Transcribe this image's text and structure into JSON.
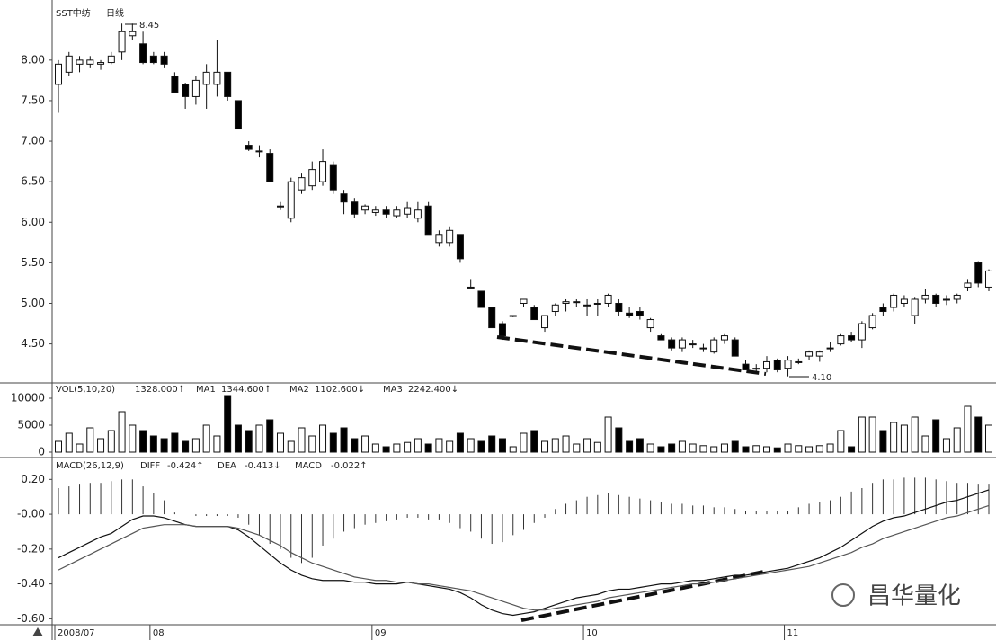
{
  "chart_data": [
    {
      "type": "candlestick",
      "title": "SST中纺",
      "subtitle": "日线",
      "annotations": [
        "8.45",
        "4.10"
      ],
      "up_color": "#ffffff",
      "down_color": "#000000",
      "open": [
        7.7,
        7.85,
        7.95,
        7.95,
        7.95,
        7.97,
        8.1,
        8.3,
        8.2,
        8.05,
        8.05,
        7.8,
        7.7,
        7.55,
        7.7,
        7.7,
        7.85,
        7.5,
        6.95,
        6.88,
        6.85,
        6.2,
        6.05,
        6.4,
        6.45,
        6.5,
        6.7,
        6.35,
        6.25,
        6.15,
        6.12,
        6.15,
        6.08,
        6.1,
        6.05,
        6.2,
        5.75,
        5.75,
        5.85,
        5.2,
        5.15,
        4.95,
        4.75,
        4.85,
        5.0,
        4.95,
        4.7,
        4.9,
        5.0,
        5.02,
        4.98,
        5.0,
        5.0,
        5.0,
        4.88,
        4.9,
        4.7,
        4.6,
        4.55,
        4.45,
        4.5,
        4.45,
        4.4,
        4.55,
        4.55,
        4.25,
        4.2,
        4.2,
        4.3,
        4.2,
        4.28,
        4.35,
        4.35,
        4.45,
        4.5,
        4.6,
        4.55,
        4.7,
        4.95,
        4.95,
        5.0,
        4.85,
        5.05,
        5.1,
        5.05,
        5.05,
        5.2,
        5.5,
        5.2
      ],
      "high": [
        8.0,
        8.1,
        8.05,
        8.05,
        8.0,
        8.1,
        8.45,
        8.45,
        8.35,
        8.1,
        8.1,
        7.85,
        7.72,
        7.8,
        7.95,
        8.25,
        7.85,
        7.5,
        7.0,
        6.95,
        6.9,
        6.25,
        6.55,
        6.6,
        6.75,
        6.9,
        6.75,
        6.4,
        6.3,
        6.22,
        6.2,
        6.2,
        6.2,
        6.25,
        6.25,
        6.25,
        5.9,
        5.95,
        5.85,
        5.3,
        5.15,
        4.95,
        4.78,
        4.85,
        5.05,
        4.98,
        4.85,
        5.0,
        5.05,
        5.05,
        5.05,
        5.05,
        5.12,
        5.05,
        4.95,
        4.95,
        4.82,
        4.62,
        4.58,
        4.58,
        4.55,
        4.5,
        4.58,
        4.62,
        4.58,
        4.3,
        4.25,
        4.35,
        4.32,
        4.35,
        4.32,
        4.42,
        4.42,
        4.52,
        4.62,
        4.65,
        4.78,
        4.88,
        5.0,
        5.12,
        5.1,
        5.08,
        5.18,
        5.12,
        5.1,
        5.12,
        5.3,
        5.52,
        5.42
      ],
      "low": [
        7.35,
        7.8,
        7.85,
        7.9,
        7.88,
        7.95,
        8.0,
        8.25,
        7.95,
        7.95,
        7.9,
        7.6,
        7.4,
        7.45,
        7.4,
        7.55,
        7.5,
        7.15,
        6.88,
        6.8,
        6.5,
        6.15,
        6.0,
        6.35,
        6.4,
        6.45,
        6.35,
        6.1,
        6.05,
        6.1,
        6.08,
        6.05,
        6.05,
        6.05,
        6.0,
        5.85,
        5.7,
        5.7,
        5.5,
        5.2,
        4.95,
        4.7,
        4.55,
        4.83,
        4.95,
        4.8,
        4.65,
        4.85,
        4.9,
        4.95,
        4.85,
        4.85,
        4.95,
        4.85,
        4.82,
        4.8,
        4.65,
        4.55,
        4.42,
        4.4,
        4.45,
        4.4,
        4.38,
        4.5,
        4.35,
        4.18,
        4.15,
        4.15,
        4.15,
        4.1,
        4.25,
        4.3,
        4.28,
        4.4,
        4.48,
        4.52,
        4.45,
        4.68,
        4.85,
        4.9,
        4.95,
        4.75,
        5.0,
        4.95,
        4.98,
        5.0,
        5.15,
        5.2,
        5.15
      ],
      "close": [
        7.95,
        8.05,
        8.0,
        8.0,
        7.97,
        8.05,
        8.35,
        8.35,
        7.97,
        7.97,
        7.95,
        7.6,
        7.55,
        7.75,
        7.85,
        7.85,
        7.55,
        7.15,
        6.9,
        6.88,
        6.5,
        6.2,
        6.5,
        6.55,
        6.65,
        6.75,
        6.4,
        6.25,
        6.1,
        6.2,
        6.15,
        6.1,
        6.15,
        6.18,
        6.15,
        5.85,
        5.85,
        5.9,
        5.55,
        5.2,
        4.95,
        4.7,
        4.6,
        4.85,
        5.05,
        4.8,
        4.85,
        4.98,
        5.02,
        5.02,
        4.98,
        5.0,
        5.1,
        4.9,
        4.85,
        4.85,
        4.8,
        4.55,
        4.45,
        4.55,
        4.5,
        4.45,
        4.55,
        4.6,
        4.35,
        4.18,
        4.2,
        4.28,
        4.18,
        4.3,
        4.28,
        4.4,
        4.4,
        4.45,
        4.6,
        4.55,
        4.75,
        4.85,
        4.9,
        5.1,
        5.05,
        5.05,
        5.1,
        5.0,
        5.05,
        5.1,
        5.25,
        5.25,
        5.4
      ],
      "ylim": [
        4.03,
        8.63
      ],
      "yticks": [
        {
          "value": 4.5,
          "label": "4.50"
        },
        {
          "value": 5,
          "label": "5.00"
        },
        {
          "value": 5.5,
          "label": "5.50"
        },
        {
          "value": 6,
          "label": "6.00"
        },
        {
          "value": 6.5,
          "label": "6.50"
        },
        {
          "value": 7,
          "label": "7.00"
        },
        {
          "value": 7.5,
          "label": "7.50"
        },
        {
          "value": 8,
          "label": "8.00"
        }
      ]
    },
    {
      "type": "volume",
      "title": "VOL(5,10,20)",
      "readout": "1328.000↑",
      "ma": [
        {
          "name": "MA1",
          "readout": "1344.600↑"
        },
        {
          "name": "MA2",
          "readout": "1102.600↓"
        },
        {
          "name": "MA3",
          "readout": "2242.400↓"
        }
      ],
      "values": [
        2000,
        3500,
        1500,
        4500,
        2500,
        4000,
        7500,
        5000,
        4000,
        3000,
        2500,
        3500,
        2000,
        2500,
        5000,
        3000,
        10500,
        5000,
        4000,
        5000,
        6000,
        3500,
        2000,
        4500,
        3000,
        5000,
        3500,
        4500,
        2500,
        3000,
        1500,
        1000,
        1500,
        1800,
        2500,
        1500,
        2500,
        2000,
        3500,
        2500,
        2000,
        3000,
        2500,
        1000,
        3500,
        4000,
        2000,
        2500,
        3000,
        1500,
        2500,
        1800,
        6500,
        4500,
        2000,
        2500,
        1500,
        1000,
        1500,
        2000,
        1500,
        1200,
        1000,
        1500,
        2000,
        1000,
        1200,
        1000,
        800,
        1500,
        1200,
        1000,
        1200,
        1500,
        4000,
        1000,
        6500,
        6500,
        4000,
        5500,
        5000,
        6500,
        3000,
        6000,
        2500,
        4500,
        8500,
        6500,
        5000
      ],
      "ylim": [
        0,
        12000
      ],
      "yticks": [
        0,
        5000,
        10000
      ]
    },
    {
      "type": "macd",
      "title": "MACD(26,12,9)",
      "categories": [
        "2008/07",
        null,
        null,
        null,
        null,
        null,
        null,
        null,
        null,
        "08",
        null,
        null,
        null,
        null,
        null,
        null,
        null,
        null,
        null,
        null,
        null,
        null,
        null,
        null,
        null,
        null,
        null,
        null,
        null,
        null,
        "09",
        null,
        null,
        null,
        null,
        null,
        null,
        null,
        null,
        null,
        null,
        null,
        null,
        null,
        null,
        null,
        null,
        null,
        null,
        null,
        "10",
        null,
        null,
        null,
        null,
        null,
        null,
        null,
        null,
        null,
        null,
        null,
        null,
        null,
        null,
        null,
        null,
        null,
        null,
        "11",
        null,
        null,
        null,
        null,
        null,
        null,
        null,
        null,
        null,
        null,
        null,
        null,
        null,
        null,
        null,
        null,
        null,
        null,
        null
      ],
      "series": [
        {
          "name": "DIFF",
          "readout": "-0.424↑",
          "color": "#111111",
          "values": [
            -0.25,
            -0.22,
            -0.19,
            -0.16,
            -0.13,
            -0.11,
            -0.07,
            -0.03,
            -0.01,
            -0.01,
            -0.02,
            -0.04,
            -0.06,
            -0.07,
            -0.07,
            -0.07,
            -0.07,
            -0.09,
            -0.13,
            -0.18,
            -0.23,
            -0.28,
            -0.32,
            -0.35,
            -0.37,
            -0.38,
            -0.38,
            -0.38,
            -0.39,
            -0.39,
            -0.4,
            -0.4,
            -0.4,
            -0.39,
            -0.4,
            -0.41,
            -0.42,
            -0.43,
            -0.45,
            -0.48,
            -0.52,
            -0.55,
            -0.57,
            -0.58,
            -0.57,
            -0.56,
            -0.54,
            -0.52,
            -0.5,
            -0.48,
            -0.47,
            -0.46,
            -0.44,
            -0.43,
            -0.43,
            -0.42,
            -0.41,
            -0.4,
            -0.4,
            -0.39,
            -0.38,
            -0.38,
            -0.37,
            -0.36,
            -0.35,
            -0.35,
            -0.34,
            -0.33,
            -0.32,
            -0.31,
            -0.29,
            -0.27,
            -0.25,
            -0.22,
            -0.19,
            -0.15,
            -0.11,
            -0.07,
            -0.04,
            -0.02,
            -0.01,
            0.01,
            0.03,
            0.05,
            0.07,
            0.08,
            0.1,
            0.12,
            0.14
          ]
        },
        {
          "name": "DEA",
          "readout": "-0.413↓",
          "color": "#555555",
          "values": [
            -0.32,
            -0.29,
            -0.26,
            -0.23,
            -0.2,
            -0.17,
            -0.14,
            -0.11,
            -0.08,
            -0.07,
            -0.06,
            -0.06,
            -0.06,
            -0.07,
            -0.07,
            -0.07,
            -0.07,
            -0.08,
            -0.1,
            -0.12,
            -0.15,
            -0.18,
            -0.22,
            -0.25,
            -0.28,
            -0.3,
            -0.32,
            -0.34,
            -0.36,
            -0.37,
            -0.38,
            -0.38,
            -0.39,
            -0.39,
            -0.4,
            -0.4,
            -0.41,
            -0.42,
            -0.43,
            -0.44,
            -0.46,
            -0.48,
            -0.5,
            -0.52,
            -0.54,
            -0.55,
            -0.55,
            -0.54,
            -0.53,
            -0.52,
            -0.51,
            -0.5,
            -0.48,
            -0.47,
            -0.46,
            -0.45,
            -0.44,
            -0.43,
            -0.42,
            -0.41,
            -0.4,
            -0.4,
            -0.39,
            -0.38,
            -0.37,
            -0.36,
            -0.35,
            -0.34,
            -0.33,
            -0.32,
            -0.31,
            -0.3,
            -0.28,
            -0.26,
            -0.24,
            -0.22,
            -0.19,
            -0.17,
            -0.14,
            -0.12,
            -0.1,
            -0.08,
            -0.06,
            -0.04,
            -0.02,
            -0.01,
            0.01,
            0.03,
            0.05
          ]
        }
      ],
      "histogram": {
        "name": "MACD",
        "readout": "-0.022↑",
        "values": [
          0.15,
          0.16,
          0.17,
          0.18,
          0.18,
          0.19,
          0.2,
          0.2,
          0.16,
          0.12,
          0.08,
          0.01,
          0.0,
          -0.01,
          -0.01,
          -0.01,
          -0.01,
          -0.02,
          -0.06,
          -0.12,
          -0.17,
          -0.2,
          -0.25,
          -0.28,
          -0.25,
          -0.18,
          -0.14,
          -0.1,
          -0.08,
          -0.06,
          -0.05,
          -0.04,
          -0.03,
          -0.02,
          -0.02,
          -0.03,
          -0.03,
          -0.05,
          -0.08,
          -0.1,
          -0.14,
          -0.17,
          -0.16,
          -0.12,
          -0.09,
          -0.05,
          -0.02,
          0.03,
          0.06,
          0.08,
          0.1,
          0.11,
          0.12,
          0.11,
          0.1,
          0.09,
          0.08,
          0.07,
          0.06,
          0.06,
          0.05,
          0.05,
          0.04,
          0.04,
          0.03,
          0.02,
          0.02,
          0.02,
          0.02,
          0.02,
          0.04,
          0.06,
          0.07,
          0.08,
          0.1,
          0.13,
          0.15,
          0.18,
          0.2,
          0.2,
          0.21,
          0.21,
          0.21,
          0.2,
          0.19,
          0.18,
          0.18,
          0.17,
          0.17
        ]
      },
      "ylim": [
        -0.66,
        0.31
      ],
      "yticks": [
        {
          "value": -0.6,
          "label": "-0.60"
        },
        {
          "value": -0.4,
          "label": "-0.40"
        },
        {
          "value": -0.2,
          "label": "-0.20"
        },
        {
          "value": 0,
          "label": "-0.00"
        },
        {
          "value": 0.2,
          "label": "0.20"
        }
      ]
    }
  ],
  "watermark": "昌华量化"
}
